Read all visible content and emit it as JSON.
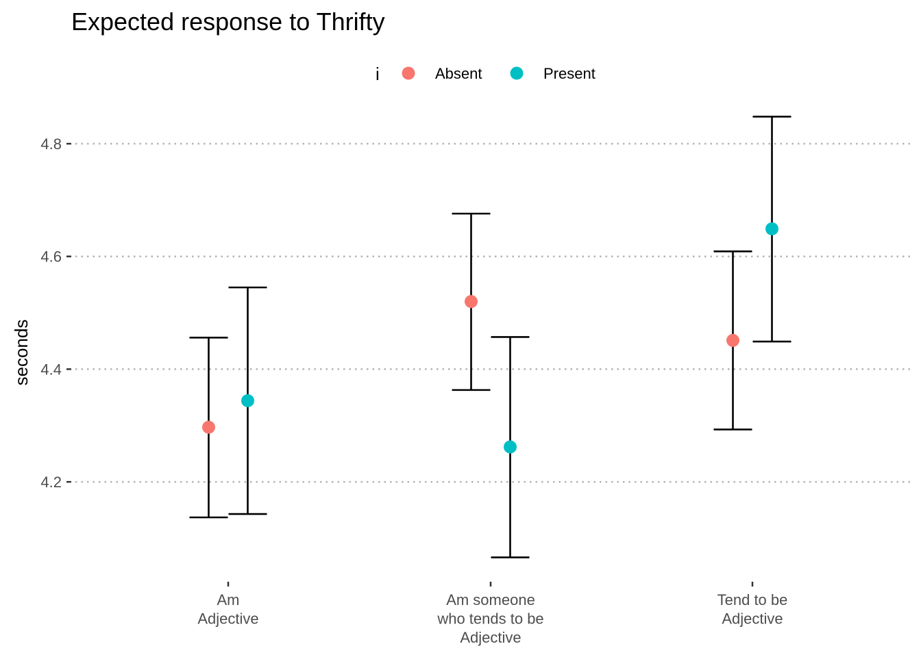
{
  "chart_data": {
    "type": "scatter",
    "title": "Expected response to Thrifty",
    "xlabel": "",
    "ylabel": "seconds",
    "ylim": [
      4.035,
      4.885
    ],
    "yticks": [
      4.2,
      4.4,
      4.6,
      4.8
    ],
    "grid": "horizontal dotted",
    "legend": {
      "title": "i",
      "position": "top"
    },
    "categories": [
      [
        "Am",
        "Adjective"
      ],
      [
        "Am someone",
        "who tends to be",
        "Adjective"
      ],
      [
        "Tend to be",
        "Adjective"
      ]
    ],
    "series": [
      {
        "name": "Absent",
        "color": "#F8766D",
        "values": [
          4.297,
          4.52,
          4.451
        ],
        "lower": [
          4.137,
          4.363,
          4.293
        ],
        "upper": [
          4.456,
          4.676,
          4.609
        ]
      },
      {
        "name": "Present",
        "color": "#00BFC4",
        "values": [
          4.344,
          4.262,
          4.649
        ],
        "lower": [
          4.143,
          4.066,
          4.449
        ],
        "upper": [
          4.545,
          4.457,
          4.848
        ]
      }
    ]
  }
}
